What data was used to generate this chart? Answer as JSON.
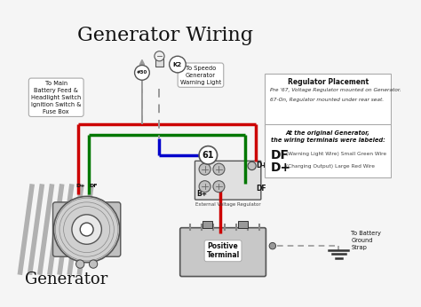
{
  "title": "Generator Wiring",
  "title_fontsize": 16,
  "background_color": "#f5f5f5",
  "wire_red": "#cc0000",
  "wire_green": "#007700",
  "wire_blue": "#0000cc",
  "wire_gray": "#999999",
  "text_color": "#111111",
  "label_generator": "Generator",
  "label_Dplus_left": "D+",
  "label_DF_left": "DF",
  "label_Dplus_reg": "D+",
  "label_DF_reg": "DF",
  "label_Bplus": "B+",
  "label_61": "61",
  "label_evr": "External Voltage Regulator",
  "label_pos_terminal": "Positive\nTerminal",
  "label_battery_ground": "To Battery\nGround\nStrap",
  "text_30_desc": "To Main\nBattery Feed &\nHeadlight Switch\nIgnition Switch &\nFuse Box",
  "text_K2_desc": "To Speedo\nGenerator\nWarning Light",
  "reg_placement_title": "Regulator Placement",
  "reg_placement_line1": "Pre '67, Voltage Regulator mounted on Generator.",
  "reg_placement_line2": "67-On, Regulator mounted under rear seat.",
  "orig_gen_title": "At the original Generator,\nthe wiring terminals were labeled:",
  "orig_gen_df_big": "DF",
  "orig_gen_df_small": " (Warning Light Wire) Small Green Wire",
  "orig_gen_dplus_big": "D+",
  "orig_gen_dplus_small": " (Charging Output) Large Red Wire",
  "num_30": "#30",
  "num_K2": "K2"
}
